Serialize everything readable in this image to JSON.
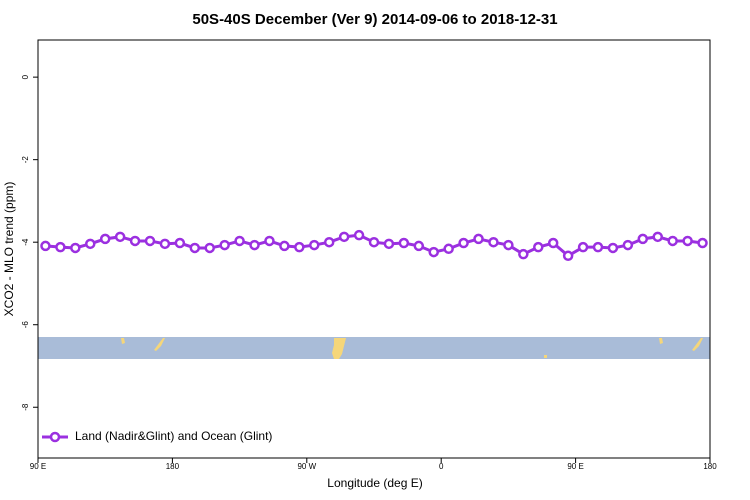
{
  "chart_data": {
    "type": "line",
    "title": "50S-40S December (Ver 9)   2014-09-06 to 2018-12-31",
    "xlabel": "Longitude (deg E)",
    "ylabel": "XCO2 - MLO trend (ppm)",
    "xlim": [
      90,
      540
    ],
    "ylim": [
      -9.23,
      0.9
    ],
    "xticks": [
      {
        "value": 90,
        "label": "90 E"
      },
      {
        "value": 180,
        "label": "180"
      },
      {
        "value": 270,
        "label": "90 W"
      },
      {
        "value": 360,
        "label": "0"
      },
      {
        "value": 450,
        "label": "90 E"
      },
      {
        "value": 540,
        "label": "180"
      }
    ],
    "yticks": [
      0,
      -2,
      -4,
      -6,
      -8
    ],
    "legend": "bottom-left",
    "x": [
      95,
      105,
      115,
      125,
      135,
      145,
      155,
      165,
      175,
      185,
      195,
      205,
      215,
      225,
      235,
      245,
      255,
      265,
      275,
      285,
      295,
      305,
      315,
      325,
      335,
      345,
      355,
      365,
      375,
      385,
      395,
      405,
      415,
      425,
      435,
      445,
      455,
      465,
      475,
      485,
      495,
      505,
      515,
      525,
      535
    ],
    "series": [
      {
        "name": "Land (Nadir&Glint) and Ocean (Glint)",
        "color": "#9b30e0",
        "values": [
          -4.09,
          -4.12,
          -4.14,
          -4.04,
          -3.92,
          -3.87,
          -3.97,
          -3.97,
          -4.04,
          -4.02,
          -4.14,
          -4.14,
          -4.07,
          -3.97,
          -4.07,
          -3.97,
          -4.09,
          -4.12,
          -4.07,
          -4.0,
          -3.87,
          -3.83,
          -4.0,
          -4.04,
          -4.02,
          -4.09,
          -4.24,
          -4.16,
          -4.02,
          -3.92,
          -4.0,
          -4.07,
          -4.29,
          -4.12,
          -4.02,
          -4.33,
          -4.12,
          -4.12,
          -4.14,
          -4.07,
          -3.92,
          -3.87,
          -3.97,
          -3.97,
          -4.02
        ]
      }
    ]
  }
}
